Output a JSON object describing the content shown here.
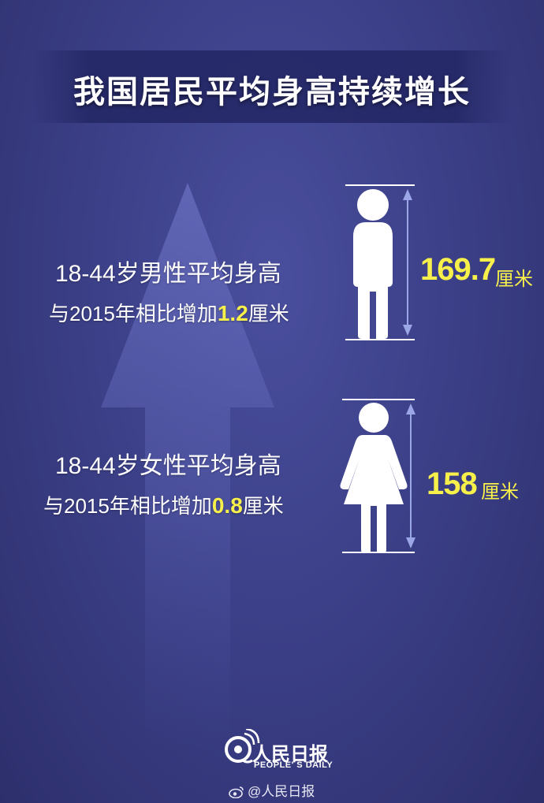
{
  "title": "我国居民平均身高持续增长",
  "male": {
    "line1": "18-44岁男性平均身高",
    "line2_prefix": "与2015年相比增加",
    "increase": "1.2",
    "line2_suffix": "厘米",
    "height": "169.7",
    "unit": "厘米"
  },
  "female": {
    "line1": "18-44岁女性平均身高",
    "line2_prefix": "与2015年相比增加",
    "increase": "0.8",
    "line2_suffix": "厘米",
    "height": "158",
    "unit": "厘米"
  },
  "logo": {
    "name": "人民日报",
    "sub": "PEOPLE' S DAILY"
  },
  "weibo": {
    "handle": "@人民日报",
    "icon": "weibo-icon"
  },
  "colors": {
    "highlight": "#f7ef4a",
    "background": "#3c4088"
  }
}
